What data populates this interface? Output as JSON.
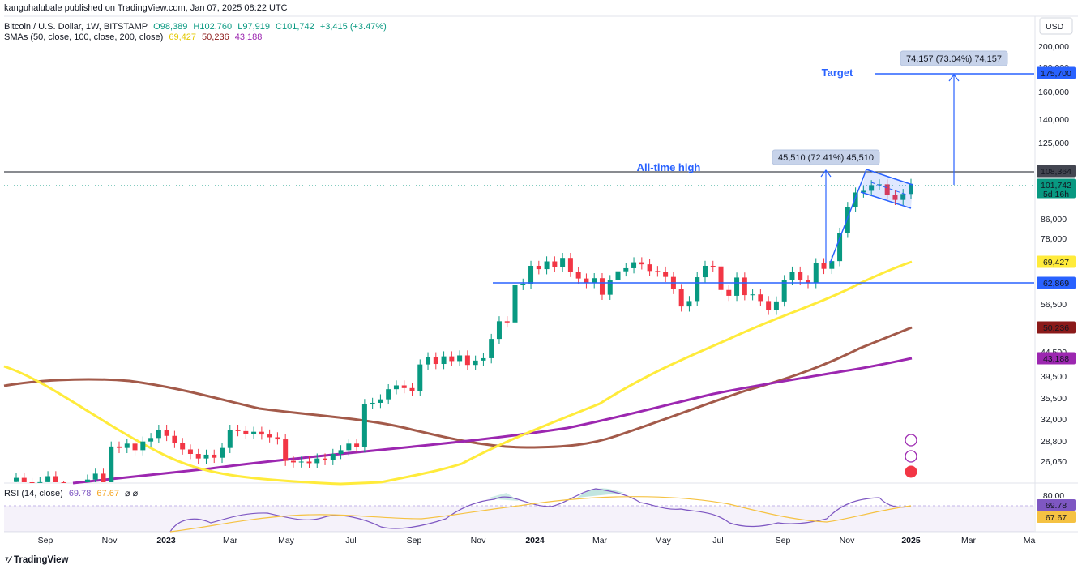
{
  "header": {
    "publisher": "kanguhalubale published on TradingView.com, Jan 07, 2025 08:22 UTC",
    "symbol": "Bitcoin / U.S. Dollar, 1W, BITSTAMP",
    "ohlc": {
      "o_label": "O",
      "o": "98,389",
      "h_label": "H",
      "h": "102,760",
      "l_label": "L",
      "l": "97,919",
      "c_label": "C",
      "c": "101,742",
      "change": "+3,415 (+3.47%)"
    },
    "sma_title": "SMAs (50, close, 100, close, 200, close)",
    "sma_values": [
      "69,427",
      "50,236",
      "43,188"
    ]
  },
  "currency": "USD",
  "colors": {
    "up": "#089981",
    "down": "#f23645",
    "sma50": "#ffeb3b",
    "sma100": "#a35a4a",
    "sma200": "#9c27b0",
    "rsi": "#7e57c2",
    "rsi_ma": "#f5c242",
    "annot": "#2962ff"
  },
  "price_axis": [
    "200,000",
    "180,000",
    "160,000",
    "140,000",
    "125,000",
    "108,364",
    "86,000",
    "78,000",
    "69,427",
    "62,869",
    "56,500",
    "50,236",
    "44,500",
    "39,500",
    "35,500",
    "32,000",
    "28,800",
    "26,050"
  ],
  "price_tags": [
    {
      "text": "175,700",
      "color": "#2962ff",
      "fg": "#ffffff"
    },
    {
      "text": "108,364",
      "color": "#434651",
      "fg": "#ffffff"
    },
    {
      "text": "101,742",
      "color": "#089981",
      "fg": "#ffffff",
      "sub": "5d 16h"
    },
    {
      "text": "69,427",
      "color": "#ffeb3b",
      "fg": "#131722"
    },
    {
      "text": "62,869",
      "color": "#2962ff",
      "fg": "#ffffff"
    },
    {
      "text": "50,236",
      "color": "#8b1a1a",
      "fg": "#ffffff"
    },
    {
      "text": "43,188",
      "color": "#9c27b0",
      "fg": "#ffffff"
    }
  ],
  "time_axis": [
    "Sep",
    "Nov",
    "2023",
    "Mar",
    "May",
    "Jul",
    "Sep",
    "Nov",
    "2024",
    "Mar",
    "May",
    "Jul",
    "Sep",
    "Nov",
    "2025",
    "Mar",
    "Ma"
  ],
  "annotations": {
    "ath_label": "All-time high",
    "target_label": "Target",
    "measure1": "45,510 (72.41%) 45,510",
    "measure2": "74,157 (73.04%) 74,157"
  },
  "rsi": {
    "title": "RSI (14, close)",
    "value": "69.78",
    "ma": "67.67",
    "axis": [
      "80.00"
    ]
  },
  "footer": "TradingView",
  "chart_data": {
    "type": "candlestick",
    "title": "Bitcoin / U.S. Dollar, 1W, BITSTAMP",
    "ohlc_last": {
      "open": 98389,
      "high": 102760,
      "low": 97919,
      "close": 101742
    },
    "y_scale": "log",
    "ylim": [
      24000,
      210000
    ],
    "levels": {
      "all_time_high": 108364,
      "breakout_support": 62869,
      "target": 175700
    },
    "sma": {
      "sma50": 69427,
      "sma100": 50236,
      "sma200": 43188
    },
    "rsi": {
      "value": 69.78,
      "ma": 67.67
    },
    "weekly_closes_approx": [
      {
        "x": "2023-02",
        "close": 23500
      },
      {
        "x": "2023-03",
        "close": 28000
      },
      {
        "x": "2023-04",
        "close": 29500
      },
      {
        "x": "2023-06",
        "close": 30400
      },
      {
        "x": "2023-08",
        "close": 26000
      },
      {
        "x": "2023-10",
        "close": 34500
      },
      {
        "x": "2023-12",
        "close": 43000
      },
      {
        "x": "2024-02",
        "close": 51800
      },
      {
        "x": "2024-03",
        "close": 69000
      },
      {
        "x": "2024-06",
        "close": 63000
      },
      {
        "x": "2024-08",
        "close": 58000
      },
      {
        "x": "2024-10",
        "close": 68000
      },
      {
        "x": "2024-11",
        "close": 97000
      },
      {
        "x": "2024-12",
        "close": 94000
      },
      {
        "x": "2025-01",
        "close": 101742
      }
    ]
  }
}
